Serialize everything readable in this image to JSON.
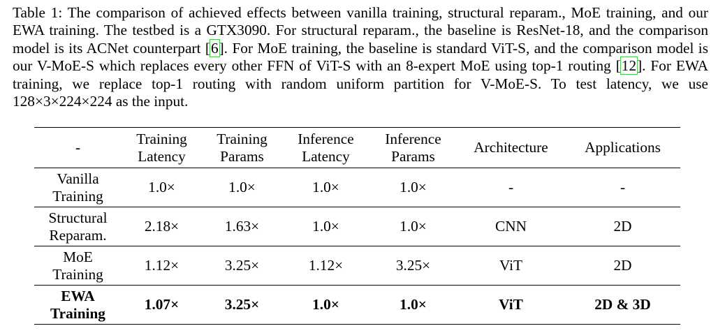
{
  "caption": {
    "p1": "Table 1: The comparison of achieved effects between vanilla training, structural reparam., MoE training, and our EWA training. The testbed is a GTX3090. For structural reparam., the baseline is ResNet-18, and the comparison model is its ACNet counterpart [",
    "ref1": "6",
    "p2": "]. For MoE training, the baseline is standard ViT-S, and the comparison model is our V-MoE-S which replaces every other FFN of ViT-S with an 8-expert MoE using top-1 routing [",
    "ref2": "12",
    "p3": "]. For EWA training, we replace top-1 routing with random uniform partition for V-MoE-S. To test latency, we use ",
    "math": "128×3×224×224",
    "p4": " as the input."
  },
  "table": {
    "header": [
      [
        "-"
      ],
      [
        "Training",
        "Latency"
      ],
      [
        "Training",
        "Params"
      ],
      [
        "Inference",
        "Latency"
      ],
      [
        "Inference",
        "Params"
      ],
      [
        "Architecture"
      ],
      [
        "Applications"
      ]
    ],
    "rows": [
      {
        "name": [
          "Vanilla",
          "Training"
        ],
        "cells": [
          "1.0×",
          "1.0×",
          "1.0×",
          "1.0×",
          "-",
          "-"
        ]
      },
      {
        "name": [
          "Structural",
          "Reparam."
        ],
        "cells": [
          "2.18×",
          "1.63×",
          "1.0×",
          "1.0×",
          "CNN",
          "2D"
        ]
      },
      {
        "name": [
          "MoE",
          "Training"
        ],
        "cells": [
          "1.12×",
          "3.25×",
          "1.12×",
          "3.25×",
          "ViT",
          "2D"
        ]
      },
      {
        "name": [
          "EWA",
          "Training"
        ],
        "cells": [
          "1.07×",
          "3.25×",
          "1.0×",
          "1.0×",
          "ViT",
          "2D & 3D"
        ]
      }
    ]
  },
  "colors": {
    "link_box": "#00ff00"
  }
}
